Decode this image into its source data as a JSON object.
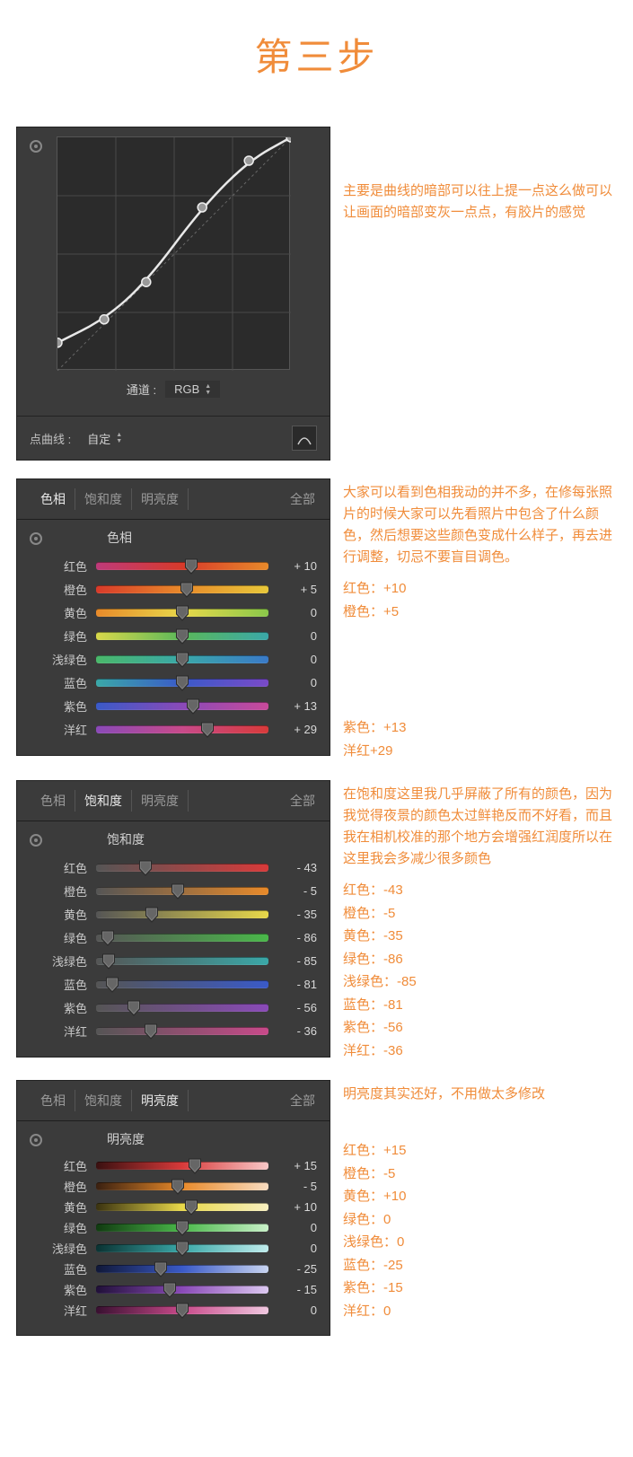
{
  "title": "第三步",
  "curve": {
    "channel_label": "通道 :",
    "channel_value": "RGB",
    "point_curve_label": "点曲线 :",
    "point_curve_value": "自定",
    "box_size": 260,
    "grid_divisions": 4,
    "points": [
      {
        "x": 0.0,
        "y": 0.12
      },
      {
        "x": 0.2,
        "y": 0.22
      },
      {
        "x": 0.38,
        "y": 0.38
      },
      {
        "x": 0.62,
        "y": 0.7
      },
      {
        "x": 0.82,
        "y": 0.9
      },
      {
        "x": 1.0,
        "y": 1.0
      }
    ],
    "grid_color": "#4a4a4a",
    "diag_color": "#666666",
    "curve_color": "#e8e8e8",
    "bg": "#2b2b2b",
    "note": "主要是曲线的暗部可以往上提一点这么做可以让画面的暗部变灰一点点，有胶片的感觉"
  },
  "tabs": {
    "hue": "色相",
    "sat": "饱和度",
    "lum": "明亮度",
    "all": "全部"
  },
  "hue_panel": {
    "title": "色相",
    "note_main": "大家可以看到色相我动的并不多，在修每张照片的时候大家可以先看照片中包含了什么颜色，然后想要这些颜色变成什么样子，再去进行调整，切忌不要盲目调色。",
    "note_lines_a": [
      "红色：+10",
      "橙色：+5"
    ],
    "note_lines_b": [
      "紫色：+13",
      "洋红+29"
    ],
    "sliders": [
      {
        "label": "红色",
        "value": 10,
        "display": "+ 10",
        "g": [
          "#be3a7a",
          "#d83a2a",
          "#e88a2a"
        ]
      },
      {
        "label": "橙色",
        "value": 5,
        "display": "+ 5",
        "g": [
          "#d83a2a",
          "#e88a2a",
          "#e8c83a"
        ]
      },
      {
        "label": "黄色",
        "value": 0,
        "display": "0",
        "g": [
          "#e88a2a",
          "#e8d84a",
          "#8ac84a"
        ]
      },
      {
        "label": "绿色",
        "value": 0,
        "display": "0",
        "g": [
          "#d8d84a",
          "#5ab85a",
          "#3aa8a8"
        ]
      },
      {
        "label": "浅绿色",
        "value": 0,
        "display": "0",
        "g": [
          "#4ab86a",
          "#3aa8a8",
          "#3a7ac8"
        ]
      },
      {
        "label": "蓝色",
        "value": 0,
        "display": "0",
        "g": [
          "#3aa8a8",
          "#3a5ac8",
          "#7a4ac8"
        ]
      },
      {
        "label": "紫色",
        "value": 13,
        "display": "+ 13",
        "g": [
          "#3a5ac8",
          "#8a4ab8",
          "#c84a9a"
        ]
      },
      {
        "label": "洋红",
        "value": 29,
        "display": "+ 29",
        "g": [
          "#8a4ab8",
          "#c84a8a",
          "#d83a3a"
        ]
      }
    ]
  },
  "sat_panel": {
    "title": "饱和度",
    "note_main": "在饱和度这里我几乎屏蔽了所有的颜色，因为我觉得夜景的颜色太过鲜艳反而不好看，而且我在相机校准的那个地方会增强红润度所以在这里我会多减少很多颜色",
    "note_lines": [
      "红色：-43",
      "橙色：-5",
      "黄色：-35",
      "绿色：-86",
      "浅绿色：-85",
      "蓝色：-81",
      "紫色：-56",
      "洋红：-36"
    ],
    "sliders": [
      {
        "label": "红色",
        "value": -43,
        "display": "- 43",
        "g": [
          "#555555",
          "#d83a3a"
        ]
      },
      {
        "label": "橙色",
        "value": -5,
        "display": "- 5",
        "g": [
          "#555555",
          "#e88a2a"
        ]
      },
      {
        "label": "黄色",
        "value": -35,
        "display": "- 35",
        "g": [
          "#555555",
          "#e8d84a"
        ]
      },
      {
        "label": "绿色",
        "value": -86,
        "display": "- 86",
        "g": [
          "#555555",
          "#4ab84a"
        ]
      },
      {
        "label": "浅绿色",
        "value": -85,
        "display": "- 85",
        "g": [
          "#555555",
          "#3aa8a8"
        ]
      },
      {
        "label": "蓝色",
        "value": -81,
        "display": "- 81",
        "g": [
          "#555555",
          "#3a5ac8"
        ]
      },
      {
        "label": "紫色",
        "value": -56,
        "display": "- 56",
        "g": [
          "#555555",
          "#8a4ab8"
        ]
      },
      {
        "label": "洋红",
        "value": -36,
        "display": "- 36",
        "g": [
          "#555555",
          "#c84a8a"
        ]
      }
    ]
  },
  "lum_panel": {
    "title": "明亮度",
    "note_main": "明亮度其实还好，不用做太多修改",
    "note_lines": [
      "红色：+15",
      "橙色：-5",
      "黄色：+10",
      "绿色：0",
      "浅绿色：0",
      "蓝色：-25",
      "紫色：-15",
      "洋红：0"
    ],
    "sliders": [
      {
        "label": "红色",
        "value": 15,
        "display": "+ 15",
        "g": [
          "#3a1010",
          "#d83a3a",
          "#f8c8c8"
        ]
      },
      {
        "label": "橙色",
        "value": -5,
        "display": "- 5",
        "g": [
          "#3a2010",
          "#e88a2a",
          "#f8dcc0"
        ]
      },
      {
        "label": "黄色",
        "value": 10,
        "display": "+ 10",
        "g": [
          "#3a3210",
          "#e8d84a",
          "#f8f0c0"
        ]
      },
      {
        "label": "绿色",
        "value": 0,
        "display": "0",
        "g": [
          "#103a10",
          "#4ab84a",
          "#c8f0c8"
        ]
      },
      {
        "label": "浅绿色",
        "value": 0,
        "display": "0",
        "g": [
          "#0a3232",
          "#3aa8a8",
          "#c0ecec"
        ]
      },
      {
        "label": "蓝色",
        "value": -25,
        "display": "- 25",
        "g": [
          "#101838",
          "#3a5ac8",
          "#c8d4f0"
        ]
      },
      {
        "label": "紫色",
        "value": -15,
        "display": "- 15",
        "g": [
          "#201038",
          "#8a4ab8",
          "#dcc8f0"
        ]
      },
      {
        "label": "洋红",
        "value": 0,
        "display": "0",
        "g": [
          "#381030",
          "#c84a8a",
          "#f0c8e0"
        ]
      }
    ]
  }
}
